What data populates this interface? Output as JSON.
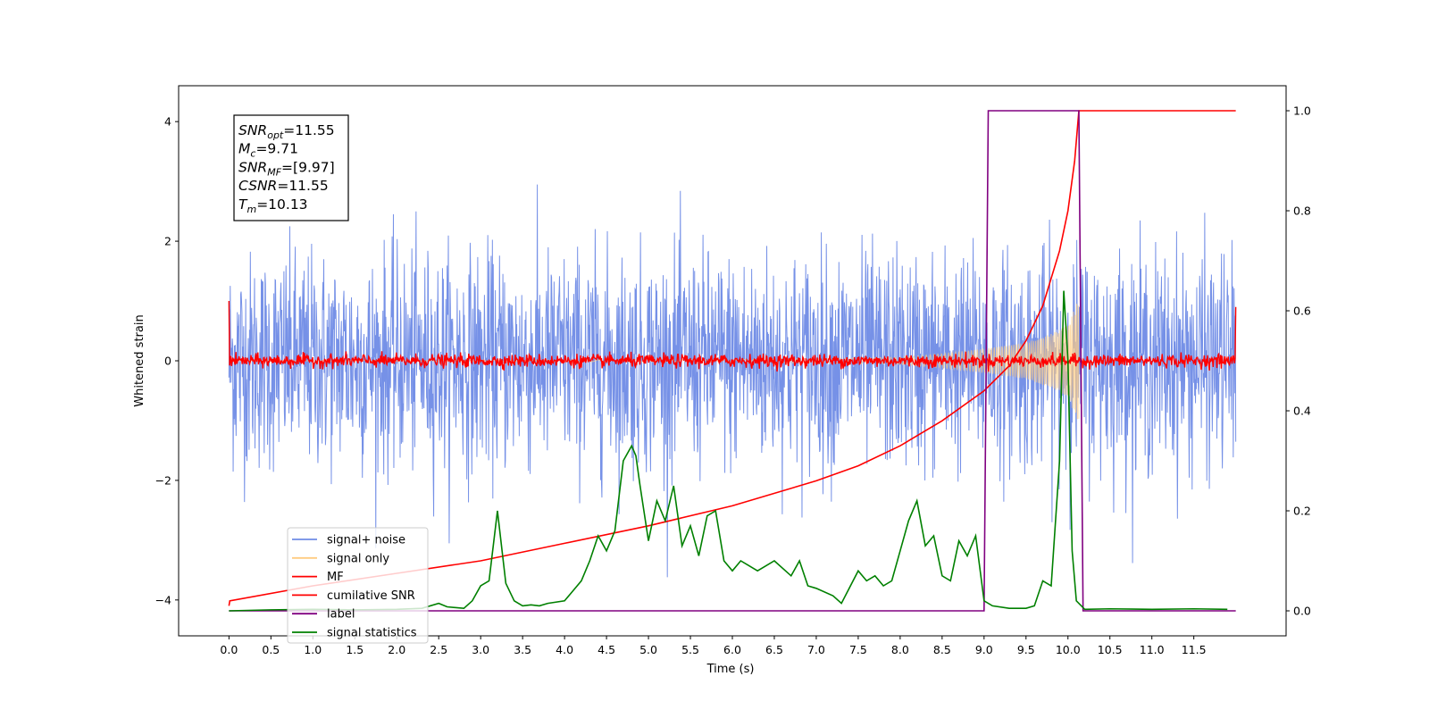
{
  "chart_data": {
    "type": "line",
    "title": "",
    "xlabel": "Time (s)",
    "ylabel": "Whitened strain",
    "y2label": "",
    "xlim": [
      -0.6,
      12.6
    ],
    "ylim": [
      -4.6,
      4.6
    ],
    "y2lim": [
      -0.05,
      1.05
    ],
    "x_ticks": [
      "0.0",
      "0.5",
      "1.0",
      "1.5",
      "2.0",
      "2.5",
      "3.0",
      "3.5",
      "4.0",
      "4.5",
      "5.0",
      "5.5",
      "6.0",
      "6.5",
      "7.0",
      "7.5",
      "8.0",
      "8.5",
      "9.0",
      "9.5",
      "10.0",
      "10.5",
      "11.0",
      "11.5"
    ],
    "y_ticks": [
      "4",
      "2",
      "0",
      "−2",
      "−4"
    ],
    "y2_ticks": [
      "1.0",
      "0.8",
      "0.6",
      "0.4",
      "0.2",
      "0.0"
    ],
    "grid": false,
    "legend_position": "lower-left",
    "annotation": {
      "lines": [
        {
          "var": "SNR",
          "sub": "opt",
          "value": "=11.55"
        },
        {
          "var": "M",
          "sub": "c",
          "value": "=9.71"
        },
        {
          "var": "SNR",
          "sub": "MF",
          "value": "=[9.97]"
        },
        {
          "var": "CSNR",
          "sub": "",
          "value": "=11.55"
        },
        {
          "var": "T",
          "sub": "m",
          "value": "=10.13"
        }
      ]
    },
    "series": [
      {
        "name": "signal+ noise",
        "axis": "left",
        "color": "#6f8be6",
        "kind": "noise",
        "x_range": [
          0,
          12
        ],
        "amplitude": 3.8,
        "note": "dense noise of roughly unit variance with peaks up to about ±4"
      },
      {
        "name": "signal only",
        "axis": "left",
        "color": "#ffcc80",
        "kind": "chirp",
        "x_range": [
          0,
          10.13
        ],
        "envelope": {
          "x": [
            0,
            6.0,
            8.0,
            8.5,
            9.0,
            9.5,
            9.8,
            10.0,
            10.13
          ],
          "y": [
            0,
            0.02,
            0.06,
            0.12,
            0.2,
            0.3,
            0.45,
            0.6,
            1.05
          ]
        }
      },
      {
        "name": "MF",
        "axis": "left",
        "color": "#ff0000",
        "kind": "noise",
        "x_range": [
          0,
          12
        ],
        "amplitude": 0.12,
        "endpoints": {
          "start": 1.0,
          "end": 0.9
        }
      },
      {
        "name": "cumilative SNR",
        "axis": "right",
        "color": "#ff0000",
        "x": [
          0.0,
          0.01,
          1.0,
          2.0,
          3.0,
          4.0,
          5.0,
          6.0,
          7.0,
          7.5,
          8.0,
          8.5,
          9.0,
          9.3,
          9.5,
          9.7,
          9.9,
          10.0,
          10.08,
          10.13,
          12.0
        ],
        "y": [
          0.01,
          0.02,
          0.05,
          0.075,
          0.1,
          0.135,
          0.17,
          0.21,
          0.26,
          0.29,
          0.33,
          0.38,
          0.44,
          0.49,
          0.54,
          0.61,
          0.72,
          0.8,
          0.9,
          1.0,
          1.0
        ]
      },
      {
        "name": "label",
        "axis": "right",
        "color": "#800080",
        "x": [
          0.0,
          9.0,
          9.05,
          10.13,
          10.18,
          12.0
        ],
        "y": [
          0.0,
          0.0,
          1.0,
          1.0,
          0.0,
          0.0
        ]
      },
      {
        "name": "signal statistics",
        "axis": "right",
        "color": "#008000",
        "x": [
          0.0,
          0.5,
          1.0,
          1.5,
          2.0,
          2.3,
          2.5,
          2.6,
          2.8,
          2.9,
          3.0,
          3.1,
          3.2,
          3.3,
          3.4,
          3.5,
          3.6,
          3.7,
          3.8,
          4.0,
          4.1,
          4.2,
          4.3,
          4.4,
          4.5,
          4.6,
          4.7,
          4.8,
          4.85,
          4.9,
          5.0,
          5.1,
          5.2,
          5.3,
          5.4,
          5.5,
          5.6,
          5.7,
          5.8,
          5.9,
          6.0,
          6.1,
          6.2,
          6.3,
          6.5,
          6.7,
          6.8,
          6.9,
          7.0,
          7.2,
          7.3,
          7.5,
          7.6,
          7.7,
          7.8,
          7.9,
          8.0,
          8.1,
          8.2,
          8.3,
          8.4,
          8.5,
          8.6,
          8.7,
          8.8,
          8.9,
          9.0,
          9.1,
          9.3,
          9.5,
          9.6,
          9.7,
          9.8,
          9.9,
          9.95,
          10.0,
          10.05,
          10.1,
          10.2,
          10.5,
          11.0,
          11.5,
          11.9
        ],
        "y": [
          0.0,
          0.002,
          0.003,
          0.002,
          0.003,
          0.005,
          0.015,
          0.008,
          0.005,
          0.02,
          0.05,
          0.06,
          0.2,
          0.055,
          0.02,
          0.01,
          0.012,
          0.01,
          0.015,
          0.02,
          0.04,
          0.06,
          0.1,
          0.15,
          0.12,
          0.16,
          0.3,
          0.33,
          0.31,
          0.25,
          0.14,
          0.22,
          0.18,
          0.25,
          0.13,
          0.17,
          0.11,
          0.19,
          0.2,
          0.1,
          0.08,
          0.1,
          0.09,
          0.08,
          0.1,
          0.07,
          0.1,
          0.05,
          0.045,
          0.03,
          0.015,
          0.08,
          0.06,
          0.07,
          0.05,
          0.06,
          0.12,
          0.18,
          0.22,
          0.13,
          0.15,
          0.07,
          0.06,
          0.14,
          0.11,
          0.15,
          0.02,
          0.01,
          0.005,
          0.005,
          0.01,
          0.06,
          0.05,
          0.3,
          0.64,
          0.5,
          0.12,
          0.02,
          0.003,
          0.004,
          0.003,
          0.004,
          0.003
        ]
      }
    ]
  }
}
